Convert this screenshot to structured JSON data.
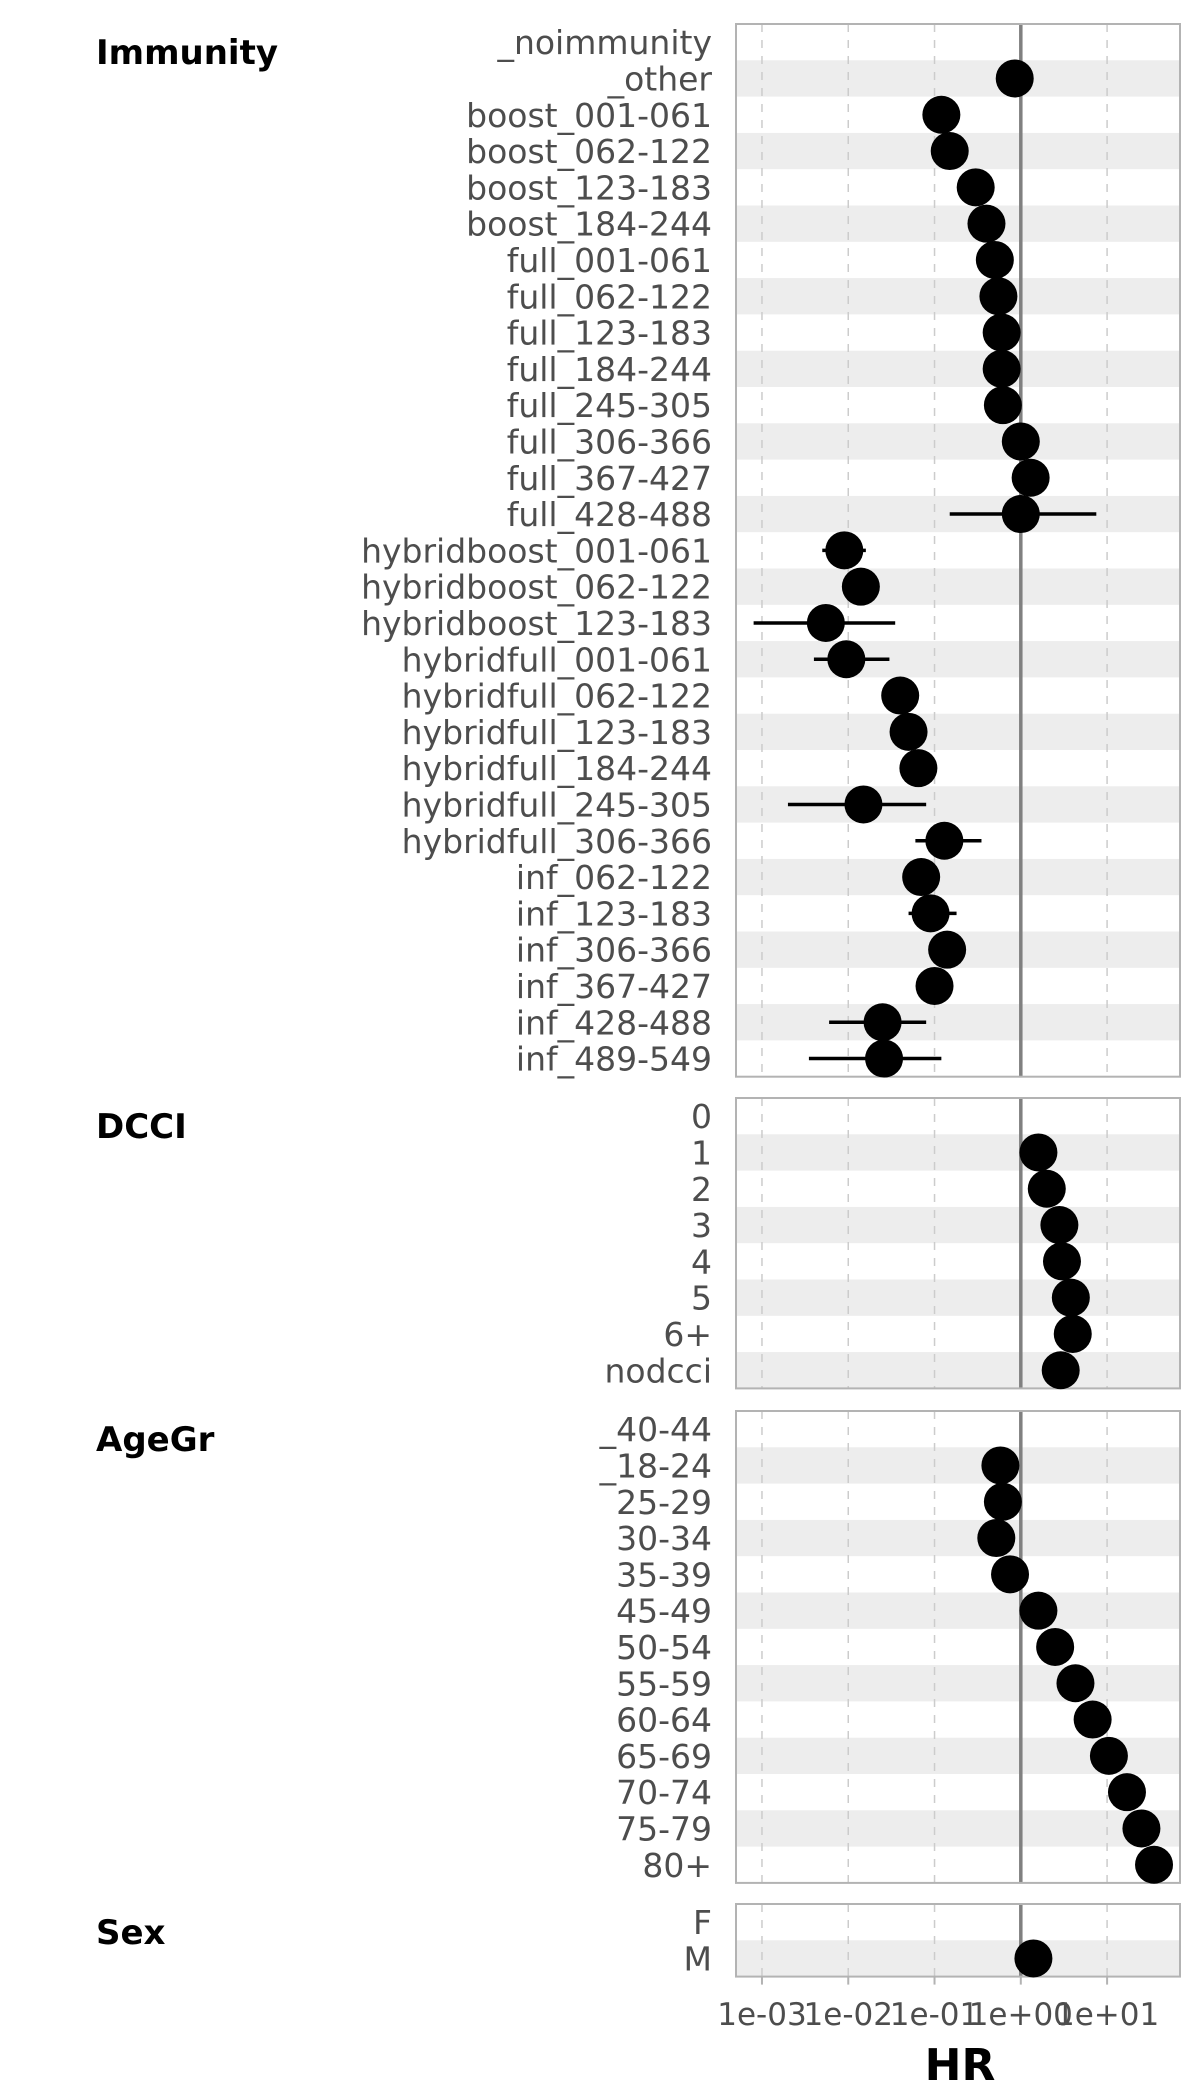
{
  "chart_data": {
    "type": "forest",
    "xlabel": "HR",
    "xscale": "log10",
    "xlim": [
      0.0005,
      70
    ],
    "reference_line": 1,
    "grid": "vertical dashed",
    "x_ticks": [
      {
        "value": 0.001,
        "label": "1e-03"
      },
      {
        "value": 0.01,
        "label": "1e-02"
      },
      {
        "value": 0.1,
        "label": "1e-01"
      },
      {
        "value": 1,
        "label": "1e+00"
      },
      {
        "value": 10,
        "label": "1e+01"
      }
    ],
    "panels": [
      {
        "name": "Immunity",
        "rows": [
          {
            "label": "_noimmunity",
            "hr": null,
            "lo": null,
            "hi": null
          },
          {
            "label": "_other",
            "hr": 0.85,
            "lo": null,
            "hi": null
          },
          {
            "label": "boost_001-061",
            "hr": 0.12,
            "lo": null,
            "hi": null
          },
          {
            "label": "boost_062-122",
            "hr": 0.15,
            "lo": null,
            "hi": null
          },
          {
            "label": "boost_123-183",
            "hr": 0.3,
            "lo": null,
            "hi": null
          },
          {
            "label": "boost_184-244",
            "hr": 0.4,
            "lo": null,
            "hi": null
          },
          {
            "label": "full_001-061",
            "hr": 0.5,
            "lo": null,
            "hi": null
          },
          {
            "label": "full_062-122",
            "hr": 0.55,
            "lo": null,
            "hi": null
          },
          {
            "label": "full_123-183",
            "hr": 0.6,
            "lo": null,
            "hi": null
          },
          {
            "label": "full_184-244",
            "hr": 0.6,
            "lo": null,
            "hi": null
          },
          {
            "label": "full_245-305",
            "hr": 0.62,
            "lo": null,
            "hi": null
          },
          {
            "label": "full_306-366",
            "hr": 1.0,
            "lo": null,
            "hi": null
          },
          {
            "label": "full_367-427",
            "hr": 1.3,
            "lo": null,
            "hi": null
          },
          {
            "label": "full_428-488",
            "hr": 1.0,
            "lo": 0.15,
            "hi": 7.5
          },
          {
            "label": "hybridboost_001-061",
            "hr": 0.009,
            "lo": 0.005,
            "hi": 0.016
          },
          {
            "label": "hybridboost_062-122",
            "hr": 0.014,
            "lo": null,
            "hi": null
          },
          {
            "label": "hybridboost_123-183",
            "hr": 0.0055,
            "lo": 0.0008,
            "hi": 0.035
          },
          {
            "label": "hybridfull_001-061",
            "hr": 0.0095,
            "lo": 0.004,
            "hi": 0.03
          },
          {
            "label": "hybridfull_062-122",
            "hr": 0.04,
            "lo": null,
            "hi": null
          },
          {
            "label": "hybridfull_123-183",
            "hr": 0.05,
            "lo": 0.035,
            "hi": 0.075
          },
          {
            "label": "hybridfull_184-244",
            "hr": 0.065,
            "lo": 0.045,
            "hi": 0.1
          },
          {
            "label": "hybridfull_245-305",
            "hr": 0.015,
            "lo": 0.002,
            "hi": 0.08
          },
          {
            "label": "hybridfull_306-366",
            "hr": 0.13,
            "lo": 0.06,
            "hi": 0.35
          },
          {
            "label": "inf_062-122",
            "hr": 0.07,
            "lo": 0.045,
            "hi": 0.1
          },
          {
            "label": "inf_123-183",
            "hr": 0.09,
            "lo": 0.05,
            "hi": 0.18
          },
          {
            "label": "inf_306-366",
            "hr": 0.14,
            "lo": null,
            "hi": null
          },
          {
            "label": "inf_367-427",
            "hr": 0.1,
            "lo": 0.075,
            "hi": 0.14
          },
          {
            "label": "inf_428-488",
            "hr": 0.025,
            "lo": 0.006,
            "hi": 0.08
          },
          {
            "label": "inf_489-549",
            "hr": 0.026,
            "lo": 0.0035,
            "hi": 0.12
          }
        ]
      },
      {
        "name": "DCCI",
        "rows": [
          {
            "label": "0",
            "hr": null,
            "lo": null,
            "hi": null
          },
          {
            "label": "1",
            "hr": 1.6,
            "lo": null,
            "hi": null
          },
          {
            "label": "2",
            "hr": 2.0,
            "lo": null,
            "hi": null
          },
          {
            "label": "3",
            "hr": 2.8,
            "lo": null,
            "hi": null
          },
          {
            "label": "4",
            "hr": 3.0,
            "lo": null,
            "hi": null
          },
          {
            "label": "5",
            "hr": 3.8,
            "lo": null,
            "hi": null
          },
          {
            "label": "6+",
            "hr": 4.0,
            "lo": null,
            "hi": null
          },
          {
            "label": "nodcci",
            "hr": 2.9,
            "lo": null,
            "hi": null
          }
        ]
      },
      {
        "name": "AgeGr",
        "rows": [
          {
            "label": "_40-44",
            "hr": null,
            "lo": null,
            "hi": null
          },
          {
            "label": "_18-24",
            "hr": 0.58,
            "lo": null,
            "hi": null
          },
          {
            "label": "25-29",
            "hr": 0.62,
            "lo": null,
            "hi": null
          },
          {
            "label": "30-34",
            "hr": 0.52,
            "lo": null,
            "hi": null
          },
          {
            "label": "35-39",
            "hr": 0.75,
            "lo": null,
            "hi": null
          },
          {
            "label": "45-49",
            "hr": 1.6,
            "lo": null,
            "hi": null
          },
          {
            "label": "50-54",
            "hr": 2.5,
            "lo": null,
            "hi": null
          },
          {
            "label": "55-59",
            "hr": 4.3,
            "lo": null,
            "hi": null
          },
          {
            "label": "60-64",
            "hr": 6.8,
            "lo": null,
            "hi": null
          },
          {
            "label": "65-69",
            "hr": 10.5,
            "lo": null,
            "hi": null
          },
          {
            "label": "70-74",
            "hr": 17.0,
            "lo": null,
            "hi": null
          },
          {
            "label": "75-79",
            "hr": 25.0,
            "lo": null,
            "hi": null
          },
          {
            "label": "80+",
            "hr": 35.0,
            "lo": null,
            "hi": null
          }
        ]
      },
      {
        "name": "Sex",
        "rows": [
          {
            "label": "F",
            "hr": null,
            "lo": null,
            "hi": null
          },
          {
            "label": "M",
            "hr": 1.4,
            "lo": null,
            "hi": null
          }
        ]
      }
    ]
  }
}
